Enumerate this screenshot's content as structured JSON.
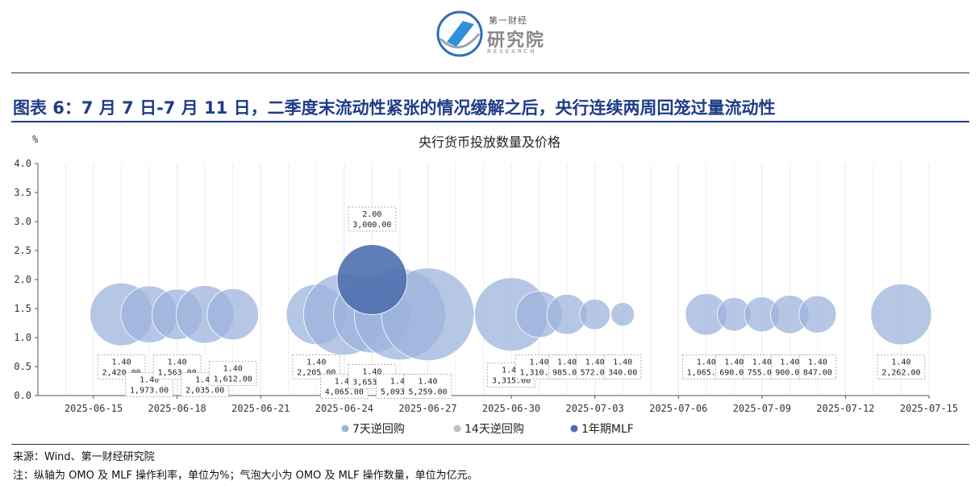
{
  "header": {
    "logo_small": "第一财经",
    "logo_big": "研究院",
    "logo_sub": "RESEARCH",
    "figure_title": "图表 6：7 月 7 日-7 月 11 日，二季度末流动性紧张的情况缓解之后，央行连续两周回笼过量流动性"
  },
  "footer": {
    "source": "来源：Wind、第一财经研究院",
    "note": "注：纵轴为 OMO 及 MLF 操作利率，单位为%；气泡大小为 OMO 及 MLF 操作数量，单位为亿元。"
  },
  "chart_data": {
    "type": "bubble",
    "title": "央行货币投放数量及价格",
    "ylabel": "%",
    "ylim": [
      0,
      4.0
    ],
    "yticks": [
      "0.0",
      "0.5",
      "1.0",
      "1.5",
      "2.0",
      "2.5",
      "3.0",
      "3.5",
      "4.0"
    ],
    "xlim": [
      "2025-06-13",
      "2025-07-15"
    ],
    "xticks": [
      "2025-06-15",
      "2025-06-18",
      "2025-06-21",
      "2025-06-24",
      "2025-06-27",
      "2025-06-30",
      "2025-07-03",
      "2025-07-06",
      "2025-07-09",
      "2025-07-12",
      "2025-07-15"
    ],
    "grid": "vertical",
    "legend_position": "bottom",
    "series": [
      {
        "name": "7天逆回购",
        "color": "#9eb3dc",
        "points": [
          {
            "date": "2025-06-16",
            "rate": 1.4,
            "amount": 2420,
            "rate_label": "1.40",
            "amount_label": "2,420.00"
          },
          {
            "date": "2025-06-17",
            "rate": 1.4,
            "amount": 1973,
            "rate_label": "1.40",
            "amount_label": "1,973.00"
          },
          {
            "date": "2025-06-18",
            "rate": 1.4,
            "amount": 1563,
            "rate_label": "1.40",
            "amount_label": "1,563.00"
          },
          {
            "date": "2025-06-19",
            "rate": 1.4,
            "amount": 2035,
            "rate_label": "1.40",
            "amount_label": "2,035.00"
          },
          {
            "date": "2025-06-20",
            "rate": 1.4,
            "amount": 1612,
            "rate_label": "1.40",
            "amount_label": "1,612.00"
          },
          {
            "date": "2025-06-23",
            "rate": 1.4,
            "amount": 2205,
            "rate_label": "1.40",
            "amount_label": "2,205.00"
          },
          {
            "date": "2025-06-24",
            "rate": 1.4,
            "amount": 4065,
            "rate_label": "1.40",
            "amount_label": "4,065.00"
          },
          {
            "date": "2025-06-25",
            "rate": 1.4,
            "amount": 3653,
            "rate_label": "1.40",
            "amount_label": "3,653.00"
          },
          {
            "date": "2025-06-26",
            "rate": 1.4,
            "amount": 5093,
            "rate_label": "1.40",
            "amount_label": "5,093.00"
          },
          {
            "date": "2025-06-27",
            "rate": 1.4,
            "amount": 5259,
            "rate_label": "1.40",
            "amount_label": "5,259.00"
          },
          {
            "date": "2025-06-30",
            "rate": 1.4,
            "amount": 3315,
            "rate_label": "1.40",
            "amount_label": "3,315.00"
          },
          {
            "date": "2025-07-01",
            "rate": 1.4,
            "amount": 1310,
            "rate_label": "1.40",
            "amount_label": "1,310.00"
          },
          {
            "date": "2025-07-02",
            "rate": 1.4,
            "amount": 985,
            "rate_label": "1.40",
            "amount_label": "985.00"
          },
          {
            "date": "2025-07-03",
            "rate": 1.4,
            "amount": 572,
            "rate_label": "1.40",
            "amount_label": "572.00"
          },
          {
            "date": "2025-07-04",
            "rate": 1.4,
            "amount": 340,
            "rate_label": "1.40",
            "amount_label": "340.00"
          },
          {
            "date": "2025-07-07",
            "rate": 1.4,
            "amount": 1065,
            "rate_label": "1.40",
            "amount_label": "1,065.00"
          },
          {
            "date": "2025-07-08",
            "rate": 1.4,
            "amount": 690,
            "rate_label": "1.40",
            "amount_label": "690.00"
          },
          {
            "date": "2025-07-09",
            "rate": 1.4,
            "amount": 755,
            "rate_label": "1.40",
            "amount_label": "755.00"
          },
          {
            "date": "2025-07-10",
            "rate": 1.4,
            "amount": 900,
            "rate_label": "1.40",
            "amount_label": "900.00"
          },
          {
            "date": "2025-07-11",
            "rate": 1.4,
            "amount": 847,
            "rate_label": "1.40",
            "amount_label": "847.00"
          },
          {
            "date": "2025-07-14",
            "rate": 1.4,
            "amount": 2262,
            "rate_label": "1.40",
            "amount_label": "2,262.00"
          }
        ]
      },
      {
        "name": "14天逆回购",
        "color": "#bfbfbf",
        "points": []
      },
      {
        "name": "1年期MLF",
        "color": "#4e6fae",
        "points": [
          {
            "date": "2025-06-25",
            "rate": 2.0,
            "amount": 3000,
            "rate_label": "2.00",
            "amount_label": "3,000.00"
          }
        ]
      }
    ]
  }
}
